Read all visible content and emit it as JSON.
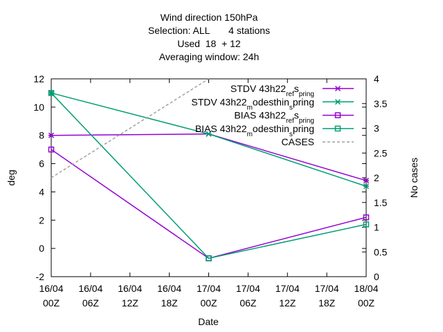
{
  "chart_data": {
    "type": "line",
    "title_lines": [
      "Wind direction 150hPa",
      "Selection: ALL       4 stations",
      "Used  18  + 12",
      "Averaging window: 24h"
    ],
    "xlabel": "Date",
    "ylabel": "deg",
    "y2label": "No cases",
    "x_ticks": [
      "16/04 00Z",
      "16/04 06Z",
      "16/04 12Z",
      "16/04 18Z",
      "17/04 00Z",
      "17/04 06Z",
      "17/04 12Z",
      "17/04 18Z",
      "18/04 00Z"
    ],
    "ylim": [
      -2,
      12
    ],
    "y_ticks": [
      -2,
      0,
      2,
      4,
      6,
      8,
      10,
      12
    ],
    "y2lim": [
      0,
      4
    ],
    "y2_ticks": [
      "0",
      "0.5",
      "1",
      "1.5",
      "2",
      "2.5",
      "3",
      "3.5",
      "4"
    ],
    "grid": false,
    "legend_position": "top-right",
    "series": [
      {
        "name": "STDV 43h22_ref_spring",
        "name_parts": [
          "STDV 43h22",
          "ref",
          "s",
          "pring"
        ],
        "color": "#9400d3",
        "marker": "star",
        "axis": "y",
        "x": [
          "16/04 00Z",
          "17/04 00Z",
          "18/04 00Z"
        ],
        "values": [
          8.0,
          8.1,
          4.8
        ]
      },
      {
        "name": "STDV 43h22_modesthin_spring",
        "name_parts": [
          "STDV 43h22",
          "m",
          "odesthin",
          "s",
          "pring"
        ],
        "color": "#009e73",
        "marker": "star",
        "axis": "y",
        "x": [
          "16/04 00Z",
          "17/04 00Z",
          "18/04 00Z"
        ],
        "values": [
          11.0,
          8.1,
          4.4
        ]
      },
      {
        "name": "BIAS 43h22_ref_spring",
        "name_parts": [
          "BIAS 43h22",
          "ref",
          "s",
          "pring"
        ],
        "color": "#9400d3",
        "marker": "box",
        "axis": "y",
        "x": [
          "16/04 00Z",
          "17/04 00Z",
          "18/04 00Z"
        ],
        "values": [
          7.0,
          -0.7,
          2.2
        ]
      },
      {
        "name": "BIAS 43h22_modesthin_spring",
        "name_parts": [
          "BIAS 43h22",
          "m",
          "odesthin",
          "s",
          "pring"
        ],
        "color": "#009e73",
        "marker": "box",
        "axis": "y",
        "x": [
          "16/04 00Z",
          "17/04 00Z",
          "18/04 00Z"
        ],
        "values": [
          11.0,
          -0.7,
          1.7
        ]
      },
      {
        "name": "CASES",
        "color": "#a0a0a0",
        "marker": "none",
        "dashed": true,
        "axis": "y2",
        "x": [
          "16/04 00Z",
          "17/04 00Z"
        ],
        "values": [
          2,
          4
        ]
      }
    ]
  }
}
